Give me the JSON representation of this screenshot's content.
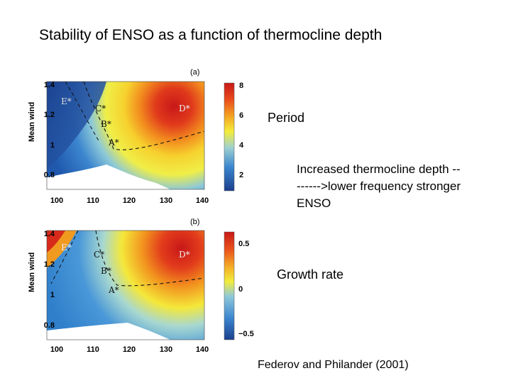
{
  "slide": {
    "title": "Stability of ENSO as a function of thermocline depth",
    "period_label": "Period",
    "growth_label": "Growth rate",
    "note_line1": "Increased thermocline depth --",
    "note_line2": "-----‑>lower frequency stronger",
    "note_line3": "ENSO",
    "citation": "Federov and Philander (2001)"
  },
  "figure": {
    "panel_a": {
      "tag": "(a)",
      "ylabel": "Mean wind",
      "yticks": [
        "1.4",
        "1.2",
        "1",
        "0.8"
      ],
      "xticks": [
        "100",
        "110",
        "120",
        "130",
        "140"
      ],
      "colorbar_ticks": [
        "8",
        "6",
        "4",
        "2"
      ],
      "points": [
        "E*",
        "C*",
        "D*",
        "B*",
        "A*"
      ]
    },
    "panel_b": {
      "tag": "(b)",
      "ylabel": "Mean wind",
      "yticks": [
        "1.4",
        "1.2",
        "1",
        "0.8"
      ],
      "xticks": [
        "100",
        "110",
        "120",
        "130",
        "140"
      ],
      "colorbar_ticks": [
        "0.5",
        "0",
        "−0.5"
      ],
      "points": [
        "E*",
        "C*",
        "D*",
        "B*",
        "A*"
      ]
    }
  },
  "colors": {
    "deep_red": "#d01c1c",
    "orange": "#f07a1a",
    "yellow": "#f4ec3a",
    "light_blue": "#6fb4e0",
    "blue": "#2d78c8",
    "dark_blue": "#1b3f8c"
  }
}
